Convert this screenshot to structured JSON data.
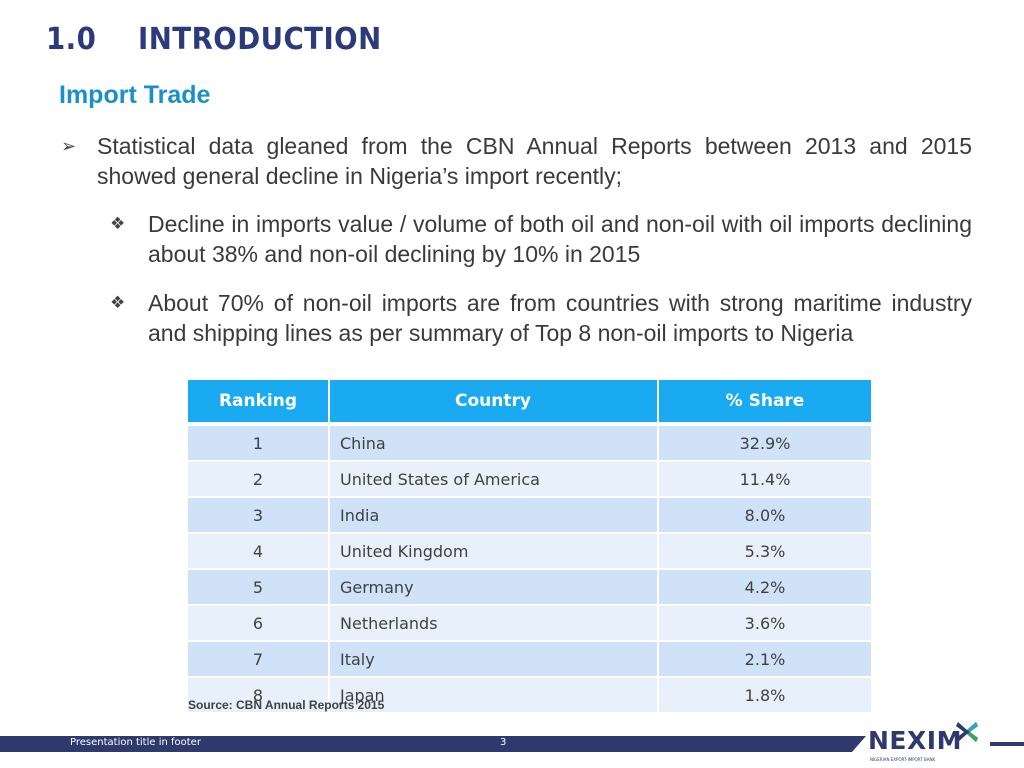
{
  "slide": {
    "section_number": "1.0",
    "section_title": "INTRODUCTION",
    "subtitle": "Import Trade"
  },
  "bullets": [
    {
      "icon": "arrow-bullet-icon",
      "text": "Statistical data gleaned from the CBN Annual Reports between 2013 and 2015 showed general decline in Nigeria’s import recently;"
    },
    {
      "icon": "diamond-bullet-icon",
      "text": "Decline in imports value / volume of both oil and non-oil with oil imports declining about 38% and non-oil declining by 10% in 2015"
    },
    {
      "icon": "diamond-bullet-icon",
      "text": "About 70% of non-oil imports are from countries with strong maritime industry and shipping lines as per summary of Top 8 non-oil imports to Nigeria"
    }
  ],
  "table": {
    "headers": [
      "Ranking",
      "Country",
      "% Share"
    ],
    "rows": [
      [
        "1",
        "China",
        "32.9%"
      ],
      [
        "2",
        "United States of America",
        "11.4%"
      ],
      [
        "3",
        "India",
        "8.0%"
      ],
      [
        "4",
        "United Kingdom",
        "5.3%"
      ],
      [
        "5",
        "Germany",
        "4.2%"
      ],
      [
        "6",
        "Netherlands",
        "3.6%"
      ],
      [
        "7",
        "Italy",
        "2.1%"
      ],
      [
        "8",
        "Japan",
        "1.8%"
      ]
    ],
    "source": "Source: CBN Annual Reports 2015"
  },
  "footer": {
    "title": "Presentation title in footer",
    "page_number": "3",
    "logo_text": "NEXIM",
    "logo_tagline": "NIGERIAN EXPORT-IMPORT BANK"
  },
  "colors": {
    "heading": "#2a3a7a",
    "subtitle": "#1a8fc9",
    "table_header": "#19aaf1",
    "row_odd": "#cfe2f8",
    "row_even": "#e8f1fb",
    "footer": "#2e3a6e"
  }
}
